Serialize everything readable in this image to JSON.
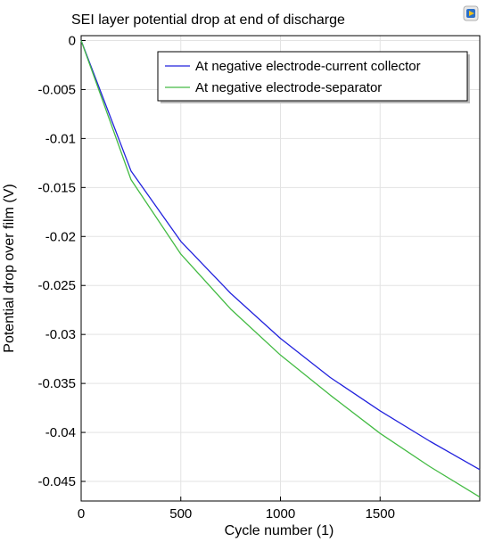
{
  "chart_data": {
    "type": "line",
    "title": "SEI layer potential drop at end of discharge",
    "xlabel": "Cycle number (1)",
    "ylabel": "Potential drop over film (V)",
    "xlim": [
      0,
      2000
    ],
    "ylim": [
      -0.047,
      0.0005
    ],
    "xticks": [
      0,
      500,
      1000,
      1500
    ],
    "xtick_labels": [
      "0",
      "500",
      "1000",
      "1500"
    ],
    "yticks": [
      0,
      -0.005,
      -0.01,
      -0.015,
      -0.02,
      -0.025,
      -0.03,
      -0.035,
      -0.04,
      -0.045
    ],
    "ytick_labels": [
      "0",
      "-0.005",
      "-0.01",
      "-0.015",
      "-0.02",
      "-0.025",
      "-0.03",
      "-0.035",
      "-0.04",
      "-0.045"
    ],
    "grid": true,
    "legend_position": "top-right",
    "series": [
      {
        "name": "At negative electrode-current collector",
        "color": "#2222dd",
        "x": [
          0,
          250,
          500,
          750,
          1000,
          1250,
          1500,
          1750,
          2000
        ],
        "y": [
          0,
          -0.0133,
          -0.0205,
          -0.0258,
          -0.0304,
          -0.0344,
          -0.0378,
          -0.0409,
          -0.0438
        ]
      },
      {
        "name": "At negative electrode-separator",
        "color": "#44bb44",
        "x": [
          0,
          250,
          500,
          750,
          1000,
          1250,
          1500,
          1750,
          2000
        ],
        "y": [
          0,
          -0.0142,
          -0.0218,
          -0.0274,
          -0.0321,
          -0.0362,
          -0.0401,
          -0.0435,
          -0.0466
        ]
      }
    ]
  }
}
